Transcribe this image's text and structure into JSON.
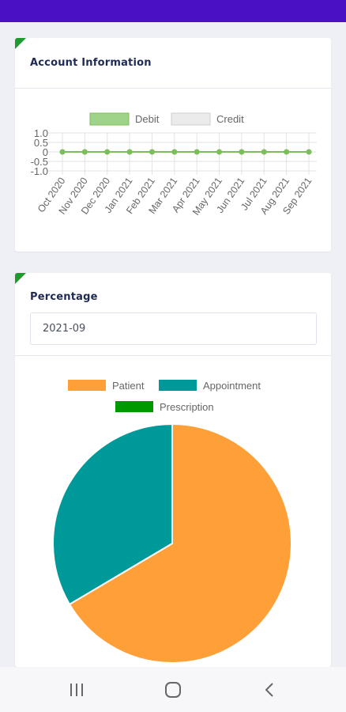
{
  "account_card": {
    "title": "Account Information"
  },
  "percentage_card": {
    "title": "Percentage",
    "month_value": "2021-09"
  },
  "chart_data": [
    {
      "type": "line",
      "x": [
        "Oct 2020",
        "Nov 2020",
        "Dec 2020",
        "Jan 2021",
        "Feb 2021",
        "Mar 2021",
        "Apr 2021",
        "May 2021",
        "Jun 2021",
        "Jul 2021",
        "Aug 2021",
        "Sep 2021"
      ],
      "series": [
        {
          "name": "Debit",
          "values": [
            0,
            0,
            0,
            0,
            0,
            0,
            0,
            0,
            0,
            0,
            0,
            0
          ],
          "color": "#7cbf5a",
          "legend_fill": "#9fd38a"
        },
        {
          "name": "Credit",
          "values": [
            0,
            0,
            0,
            0,
            0,
            0,
            0,
            0,
            0,
            0,
            0,
            0
          ],
          "color": "#cfcfcf",
          "legend_fill": "#ebebeb"
        }
      ],
      "y_ticks": [
        "1.0",
        "0.5",
        "0",
        "-0.5",
        "-1.0"
      ],
      "ylim": [
        -1.0,
        1.0
      ],
      "grid": true,
      "legend": "top"
    },
    {
      "type": "pie",
      "labels": [
        "Patient",
        "Appointment",
        "Prescription"
      ],
      "values": [
        66.5,
        33.5,
        0
      ],
      "colors": [
        "#ff9f38",
        "#00999a",
        "#009a00"
      ],
      "legend": "top"
    }
  ],
  "navbar": {
    "recent_icon": "recent-apps-icon",
    "home_icon": "home-icon",
    "back_icon": "back-icon"
  }
}
